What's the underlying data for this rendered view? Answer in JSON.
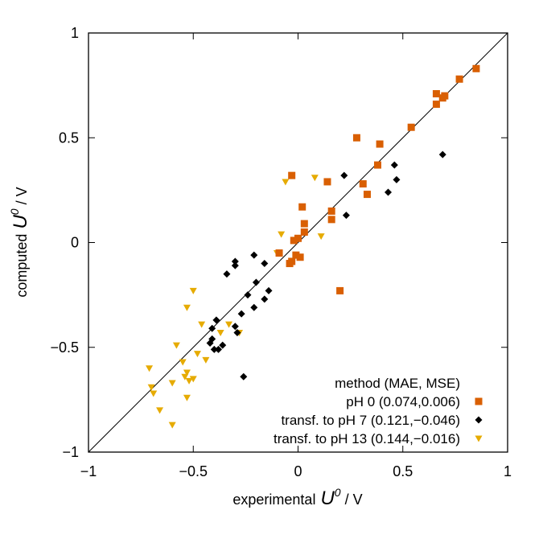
{
  "chart_data": {
    "type": "scatter",
    "xlabel": "experimental",
    "xlabel_symbol": "U",
    "xlabel_sup": "0",
    "xlabel_unit": " / V",
    "ylabel": "computed",
    "ylabel_symbol": "U",
    "ylabel_sup": "0",
    "ylabel_unit": " / V",
    "xlim": [
      -1,
      1
    ],
    "ylim": [
      -1,
      1
    ],
    "xticks": [
      -1,
      -0.5,
      0,
      0.5,
      1
    ],
    "yticks": [
      -1,
      -0.5,
      0,
      0.5,
      1
    ],
    "xtick_labels": [
      "−1",
      "−0.5",
      "0",
      "0.5",
      "1"
    ],
    "ytick_labels": [
      "−1",
      "−0.5",
      "0",
      "0.5",
      "1"
    ],
    "grid": false,
    "diagonal_line": true,
    "legend_title": "method (MAE, MSE)",
    "legend_position": "bottom-right",
    "series": [
      {
        "name": "pH 0 (0.074,0.006)",
        "marker": "square",
        "color": "#d95f02",
        "points": [
          [
            0.85,
            0.83
          ],
          [
            0.77,
            0.78
          ],
          [
            0.7,
            0.7
          ],
          [
            0.69,
            0.69
          ],
          [
            0.66,
            0.71
          ],
          [
            0.66,
            0.66
          ],
          [
            0.54,
            0.55
          ],
          [
            0.28,
            0.5
          ],
          [
            0.39,
            0.47
          ],
          [
            0.38,
            0.37
          ],
          [
            0.31,
            0.28
          ],
          [
            0.33,
            0.23
          ],
          [
            0.14,
            0.29
          ],
          [
            0.16,
            0.15
          ],
          [
            0.16,
            0.11
          ],
          [
            0.02,
            0.17
          ],
          [
            0.03,
            0.09
          ],
          [
            0.03,
            0.05
          ],
          [
            -0.03,
            0.32
          ],
          [
            -0.02,
            0.01
          ],
          [
            0.0,
            0.02
          ],
          [
            -0.04,
            -0.1
          ],
          [
            -0.03,
            -0.09
          ],
          [
            0.01,
            -0.07
          ],
          [
            -0.01,
            -0.06
          ],
          [
            -0.09,
            -0.05
          ],
          [
            0.2,
            -0.23
          ]
        ]
      },
      {
        "name": "transf. to pH 7 (0.121,−0.046)",
        "marker": "diamond",
        "color": "#000000",
        "points": [
          [
            0.69,
            0.42
          ],
          [
            0.46,
            0.37
          ],
          [
            0.47,
            0.3
          ],
          [
            0.43,
            0.24
          ],
          [
            0.22,
            0.32
          ],
          [
            0.23,
            0.13
          ],
          [
            -0.3,
            -0.09
          ],
          [
            -0.3,
            -0.11
          ],
          [
            -0.34,
            -0.15
          ],
          [
            -0.21,
            -0.06
          ],
          [
            -0.16,
            -0.1
          ],
          [
            -0.2,
            -0.19
          ],
          [
            -0.14,
            -0.23
          ],
          [
            -0.16,
            -0.27
          ],
          [
            -0.24,
            -0.25
          ],
          [
            -0.21,
            -0.31
          ],
          [
            -0.27,
            -0.34
          ],
          [
            -0.39,
            -0.37
          ],
          [
            -0.41,
            -0.41
          ],
          [
            -0.3,
            -0.4
          ],
          [
            -0.29,
            -0.43
          ],
          [
            -0.41,
            -0.46
          ],
          [
            -0.42,
            -0.48
          ],
          [
            -0.36,
            -0.49
          ],
          [
            -0.38,
            -0.51
          ],
          [
            -0.4,
            -0.51
          ],
          [
            -0.26,
            -0.64
          ]
        ]
      },
      {
        "name": "transf. to pH 13 (0.144,−0.016)",
        "marker": "triangle-down",
        "color": "#e6ab02",
        "points": [
          [
            0.08,
            0.31
          ],
          [
            -0.06,
            0.29
          ],
          [
            -0.08,
            0.04
          ],
          [
            -0.1,
            -0.05
          ],
          [
            0.11,
            0.03
          ],
          [
            -0.5,
            -0.23
          ],
          [
            -0.53,
            -0.31
          ],
          [
            -0.46,
            -0.39
          ],
          [
            -0.37,
            -0.43
          ],
          [
            -0.48,
            -0.53
          ],
          [
            -0.44,
            -0.56
          ],
          [
            -0.55,
            -0.57
          ],
          [
            -0.53,
            -0.62
          ],
          [
            -0.6,
            -0.67
          ],
          [
            -0.54,
            -0.64
          ],
          [
            -0.52,
            -0.66
          ],
          [
            -0.5,
            -0.65
          ],
          [
            -0.71,
            -0.6
          ],
          [
            -0.7,
            -0.69
          ],
          [
            -0.69,
            -0.72
          ],
          [
            -0.53,
            -0.74
          ],
          [
            -0.66,
            -0.8
          ],
          [
            -0.6,
            -0.87
          ],
          [
            -0.58,
            -0.49
          ],
          [
            -0.28,
            -0.43
          ],
          [
            -0.33,
            -0.39
          ]
        ]
      }
    ]
  }
}
